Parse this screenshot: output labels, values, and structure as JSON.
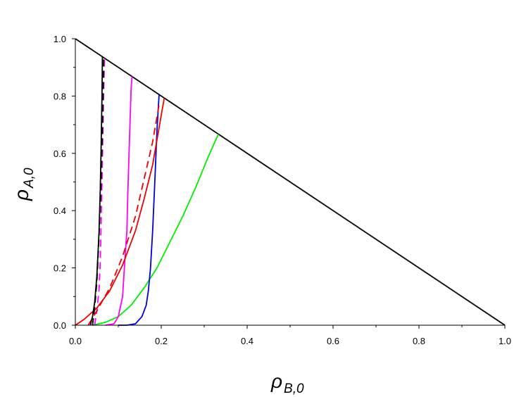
{
  "chart_data": {
    "type": "line",
    "xlabel": {
      "symbol": "ρ",
      "subscript": "B,0"
    },
    "ylabel": {
      "symbol": "ρ",
      "subscript": "A,0"
    },
    "xlim": [
      0,
      1
    ],
    "ylim": [
      0,
      1
    ],
    "xticks": [
      "0.0",
      "0.2",
      "0.4",
      "0.6",
      "0.8",
      "1.0"
    ],
    "yticks": [
      "0.0",
      "0.2",
      "0.4",
      "0.6",
      "0.8",
      "1.0"
    ],
    "grid": false,
    "legend": "none",
    "series": [
      {
        "color": "#000000",
        "dash": "solid",
        "x": [
          0,
          1
        ],
        "y": [
          1,
          0
        ]
      },
      {
        "color": "#00ee00",
        "dash": "solid",
        "x": [
          0.04,
          0.07,
          0.1,
          0.13,
          0.16,
          0.19,
          0.22,
          0.25,
          0.28,
          0.31,
          0.333
        ],
        "y": [
          0.0,
          0.01,
          0.03,
          0.07,
          0.13,
          0.2,
          0.29,
          0.38,
          0.48,
          0.59,
          0.667
        ]
      },
      {
        "color": "#0000dd",
        "dash": "solid",
        "x": [
          0.1,
          0.12,
          0.14,
          0.155,
          0.165,
          0.17,
          0.175,
          0.18,
          0.185,
          0.19,
          0.195
        ],
        "y": [
          0.0,
          0.0,
          0.005,
          0.03,
          0.07,
          0.12,
          0.2,
          0.33,
          0.5,
          0.68,
          0.805
        ]
      },
      {
        "color": "#ff00ff",
        "dash": "solid",
        "x": [
          0.07,
          0.09,
          0.1,
          0.11,
          0.115,
          0.12,
          0.122,
          0.125,
          0.128,
          0.13,
          0.132
        ],
        "y": [
          0.0,
          0.005,
          0.03,
          0.1,
          0.22,
          0.33,
          0.45,
          0.6,
          0.74,
          0.83,
          0.868
        ]
      },
      {
        "color": "#ff00ff",
        "dash": "dashed",
        "x": [
          0.045,
          0.05,
          0.055,
          0.058,
          0.06,
          0.062,
          0.064,
          0.066,
          0.068
        ],
        "y": [
          0.0,
          0.05,
          0.12,
          0.22,
          0.35,
          0.5,
          0.66,
          0.82,
          0.932
        ]
      },
      {
        "color": "#ee0000",
        "dash": "solid",
        "x": [
          0.0,
          0.02,
          0.05,
          0.08,
          0.11,
          0.14,
          0.16,
          0.18,
          0.195,
          0.207
        ],
        "y": [
          0.0,
          0.02,
          0.06,
          0.12,
          0.21,
          0.33,
          0.44,
          0.56,
          0.69,
          0.793
        ]
      },
      {
        "color": "#ee0000",
        "dash": "dashed",
        "x": [
          0.03,
          0.05,
          0.08,
          0.11,
          0.14,
          0.16,
          0.18,
          0.195
        ],
        "y": [
          0.0,
          0.05,
          0.13,
          0.24,
          0.38,
          0.51,
          0.64,
          0.77
        ]
      },
      {
        "color": "#000000",
        "dash": "solid",
        "x": [
          0.035,
          0.04,
          0.045,
          0.05,
          0.055,
          0.058,
          0.06,
          0.062,
          0.063
        ],
        "y": [
          0.0,
          0.03,
          0.08,
          0.17,
          0.32,
          0.47,
          0.62,
          0.8,
          0.937
        ]
      },
      {
        "color": "#000000",
        "dash": "dashed",
        "x": [
          0.04,
          0.045,
          0.05,
          0.055,
          0.06,
          0.063,
          0.065,
          0.066
        ],
        "y": [
          0.0,
          0.06,
          0.15,
          0.3,
          0.5,
          0.68,
          0.84,
          0.934
        ]
      }
    ]
  }
}
